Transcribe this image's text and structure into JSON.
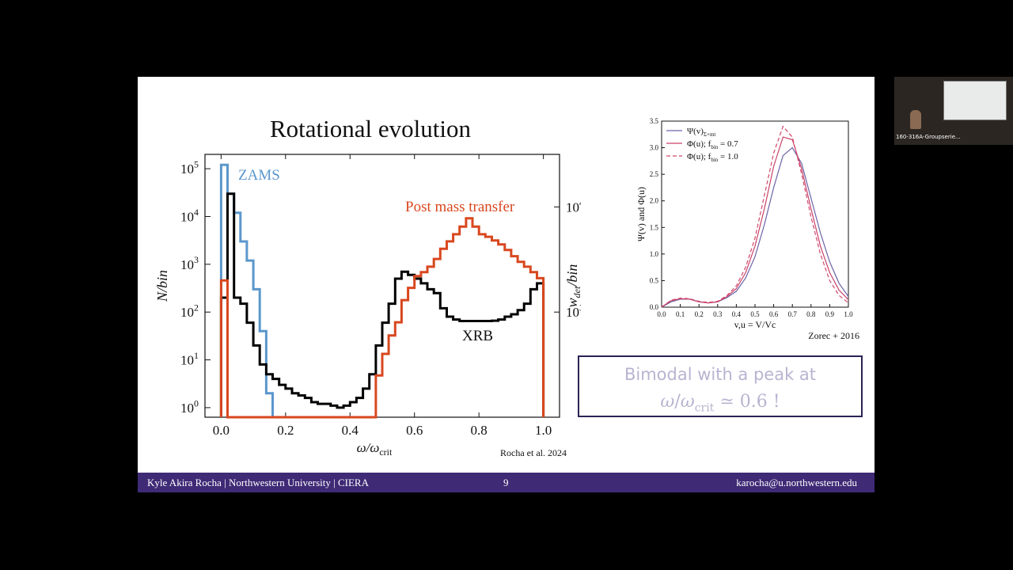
{
  "slide": {
    "title": "Rotational evolution",
    "callout_line1": "Bimodal with a peak at",
    "callout_line2": "≃ 0.6 !"
  },
  "footer": {
    "author": "Kyle Akira Rocha",
    "affiliation": "Northwestern University",
    "org": "CIERA",
    "page": "9",
    "email": "karocha@u.northwestern.edu"
  },
  "camera": {
    "label": "160-316A-Groupserie..."
  },
  "chart_data": [
    {
      "type": "line",
      "step": true,
      "xlabel": "ω/ω_crit",
      "ylabel": "N/bin",
      "y2label": "w_det/bin",
      "xlim": [
        -0.05,
        1.05
      ],
      "ylim_log": [
        -0.2,
        5.3
      ],
      "y2lim_log": [
        2.0,
        4.5
      ],
      "xticks": [
        "0.0",
        "0.2",
        "0.4",
        "0.6",
        "0.8",
        "1.0"
      ],
      "yticks": [
        "10^0",
        "10^1",
        "10^2",
        "10^3",
        "10^4",
        "10^5"
      ],
      "y2ticks": [
        "10^3",
        "10^4"
      ],
      "credit": "Rocha et al. 2024",
      "bin_width": 0.02,
      "series": [
        {
          "name": "ZAMS",
          "axis": "left",
          "color": "#5b97cc",
          "x": [
            0.0,
            0.02,
            0.04,
            0.06,
            0.08,
            0.1,
            0.12,
            0.14
          ],
          "y": [
            120000,
            30000,
            12000,
            3000,
            1200,
            300,
            40,
            2
          ]
        },
        {
          "name": "XRB",
          "axis": "left",
          "color": "#000000",
          "x": [
            0.01,
            0.03,
            0.05,
            0.07,
            0.09,
            0.11,
            0.13,
            0.15,
            0.17,
            0.19,
            0.21,
            0.23,
            0.25,
            0.27,
            0.29,
            0.31,
            0.33,
            0.35,
            0.37,
            0.39,
            0.41,
            0.43,
            0.45,
            0.47,
            0.49,
            0.51,
            0.53,
            0.55,
            0.57,
            0.59,
            0.61,
            0.63,
            0.65,
            0.67,
            0.69,
            0.71,
            0.73,
            0.75,
            0.77,
            0.79,
            0.81,
            0.83,
            0.85,
            0.87,
            0.89,
            0.91,
            0.93,
            0.95,
            0.97,
            0.99
          ],
          "y": [
            200,
            30000,
            200,
            150,
            60,
            20,
            8,
            5,
            4,
            3,
            2.5,
            2,
            1.8,
            1.6,
            1.3,
            1.2,
            1.2,
            1.1,
            1.0,
            1.1,
            1.3,
            1.6,
            2.5,
            5,
            20,
            60,
            150,
            500,
            700,
            600,
            500,
            400,
            300,
            250,
            120,
            80,
            70,
            65,
            65,
            65,
            65,
            65,
            66,
            70,
            80,
            90,
            110,
            150,
            300,
            400
          ]
        },
        {
          "name": "Post mass transfer",
          "axis": "right",
          "color": "#d9471f",
          "x": [
            0.0,
            0.02,
            0.04,
            0.06,
            0.08,
            0.1,
            0.12,
            0.14,
            0.16,
            0.18,
            0.2,
            0.22,
            0.24,
            0.26,
            0.28,
            0.3,
            0.32,
            0.34,
            0.36,
            0.38,
            0.4,
            0.42,
            0.44,
            0.46,
            0.48,
            0.5,
            0.52,
            0.54,
            0.56,
            0.58,
            0.6,
            0.62,
            0.64,
            0.66,
            0.68,
            0.7,
            0.72,
            0.74,
            0.76,
            0.78,
            0.8,
            0.82,
            0.84,
            0.86,
            0.88,
            0.9,
            0.92,
            0.94,
            0.96,
            0.98
          ],
          "y": [
            2000,
            100,
            100,
            100,
            100,
            100,
            100,
            100,
            100,
            100,
            100,
            100,
            100,
            100,
            100,
            100,
            100,
            100,
            100,
            100,
            100,
            100,
            100,
            100,
            250,
            400,
            600,
            800,
            1300,
            1700,
            2200,
            2400,
            2700,
            3200,
            4000,
            4700,
            5500,
            6500,
            7800,
            6500,
            5500,
            5200,
            4800,
            4400,
            3900,
            3400,
            3000,
            2700,
            2400,
            2100
          ]
        }
      ],
      "labels": [
        "ZAMS",
        "Post mass transfer",
        "XRB"
      ]
    },
    {
      "type": "line",
      "xlabel": "v,u = V/Vc",
      "ylabel": "Ψ(v) and Φ(u)",
      "xlim": [
        0.0,
        1.0
      ],
      "ylim": [
        0.0,
        3.5
      ],
      "xticks": [
        "0.0",
        "0.1",
        "0.2",
        "0.3",
        "0.4",
        "0.5",
        "0.6",
        "0.7",
        "0.8",
        "0.9",
        "1.0"
      ],
      "yticks": [
        "0.0",
        "0.5",
        "1.0",
        "1.5",
        "2.0",
        "2.5",
        "3.0",
        "3.5"
      ],
      "credit": "Zorec + 2016",
      "series": [
        {
          "name": "Ψ(v)",
          "name_sub": "Σ+mt",
          "color": "#6a63a6",
          "dash": "",
          "x": [
            0.0,
            0.05,
            0.1,
            0.15,
            0.2,
            0.25,
            0.3,
            0.35,
            0.4,
            0.45,
            0.5,
            0.55,
            0.6,
            0.65,
            0.7,
            0.75,
            0.8,
            0.85,
            0.9,
            0.95,
            1.0
          ],
          "y": [
            0.0,
            0.1,
            0.15,
            0.15,
            0.1,
            0.08,
            0.1,
            0.18,
            0.3,
            0.55,
            0.95,
            1.55,
            2.25,
            2.85,
            3.0,
            2.7,
            2.05,
            1.4,
            0.85,
            0.45,
            0.2
          ]
        },
        {
          "name": "Φ(u); f",
          "name_sub": "bin",
          "name_suffix": " = 0.7",
          "color": "#c9426a",
          "dash": "",
          "x": [
            0.0,
            0.05,
            0.1,
            0.15,
            0.2,
            0.25,
            0.3,
            0.35,
            0.4,
            0.45,
            0.5,
            0.55,
            0.6,
            0.65,
            0.7,
            0.75,
            0.8,
            0.85,
            0.9,
            0.95,
            1.0
          ],
          "y": [
            0.0,
            0.12,
            0.16,
            0.15,
            0.1,
            0.08,
            0.1,
            0.2,
            0.35,
            0.65,
            1.15,
            1.85,
            2.65,
            3.2,
            3.15,
            2.6,
            1.85,
            1.15,
            0.65,
            0.32,
            0.14
          ]
        },
        {
          "name": "Φ(u); f",
          "name_sub": "bin",
          "name_suffix": " = 1.0",
          "color": "#d2476a",
          "dash": "5,3",
          "x": [
            0.0,
            0.05,
            0.1,
            0.15,
            0.2,
            0.25,
            0.3,
            0.35,
            0.4,
            0.45,
            0.5,
            0.55,
            0.6,
            0.65,
            0.7,
            0.75,
            0.8,
            0.85,
            0.9,
            0.95,
            1.0
          ],
          "y": [
            0.0,
            0.13,
            0.17,
            0.16,
            0.11,
            0.09,
            0.11,
            0.22,
            0.4,
            0.75,
            1.3,
            2.1,
            2.9,
            3.4,
            3.2,
            2.5,
            1.7,
            1.0,
            0.5,
            0.22,
            0.08
          ]
        }
      ],
      "legend": "top-left"
    }
  ]
}
